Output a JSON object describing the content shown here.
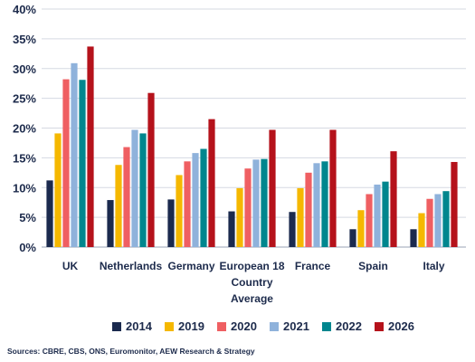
{
  "chart_data": {
    "type": "bar",
    "categories": [
      [
        "UK"
      ],
      [
        "Netherlands"
      ],
      [
        "Germany"
      ],
      [
        "European 18",
        "Country",
        "Average"
      ],
      [
        "France"
      ],
      [
        "Spain"
      ],
      [
        "Italy"
      ]
    ],
    "series": [
      {
        "name": "2014",
        "color": "#1b2a4e",
        "values": [
          11.2,
          7.9,
          8.0,
          6.0,
          5.9,
          3.0,
          3.0
        ]
      },
      {
        "name": "2019",
        "color": "#f5b800",
        "values": [
          19.1,
          13.8,
          12.1,
          9.9,
          9.9,
          6.2,
          5.7
        ]
      },
      {
        "name": "2020",
        "color": "#ef5f62",
        "values": [
          28.2,
          16.8,
          14.4,
          13.2,
          12.5,
          8.9,
          8.1
        ]
      },
      {
        "name": "2021",
        "color": "#8fb2db",
        "values": [
          30.9,
          19.7,
          15.8,
          14.7,
          14.1,
          10.5,
          8.9
        ]
      },
      {
        "name": "2022",
        "color": "#00868e",
        "values": [
          28.1,
          19.1,
          16.5,
          14.8,
          14.4,
          11.0,
          9.4
        ]
      },
      {
        "name": "2026",
        "color": "#b5121b",
        "values": [
          33.7,
          25.9,
          21.5,
          19.7,
          19.7,
          16.1,
          14.3
        ]
      }
    ],
    "y_ticks": [
      "0%",
      "5%",
      "10%",
      "15%",
      "20%",
      "25%",
      "30%",
      "35%",
      "40%"
    ],
    "ylim": [
      0,
      40
    ],
    "grid": true,
    "legend_position": "bottom"
  },
  "source_text": "Sources: CBRE, CBS, ONS, Euromonitor, AEW Research & Strategy"
}
